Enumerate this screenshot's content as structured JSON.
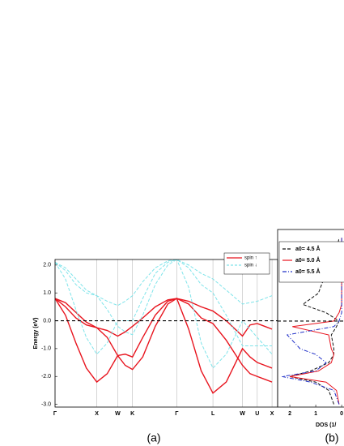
{
  "chart_data": [
    {
      "type": "line",
      "panel_label": "(a)",
      "y_label": "Energy (eV)",
      "xlim": [
        0,
        5.33
      ],
      "ylim": [
        -3.1,
        2.2
      ],
      "xticks": [
        {
          "value": 0,
          "label": "Γ"
        },
        {
          "value": 1,
          "label": "X"
        },
        {
          "value": 1.5,
          "label": "W"
        },
        {
          "value": 1.854,
          "label": "K"
        },
        {
          "value": 2.915,
          "label": "Γ"
        },
        {
          "value": 3.781,
          "label": "L"
        },
        {
          "value": 4.488,
          "label": "W"
        },
        {
          "value": 4.842,
          "label": "U"
        },
        {
          "value": 5.196,
          "label": "X"
        }
      ],
      "yticks": [
        {
          "value": 2,
          "label": "2.0"
        },
        {
          "value": 1,
          "label": "1.0"
        },
        {
          "value": 0,
          "label": "0.0"
        },
        {
          "value": -1,
          "label": "-1.0"
        },
        {
          "value": -2,
          "label": "-2.0"
        },
        {
          "value": -3,
          "label": "-3.0"
        }
      ],
      "grid": true,
      "fermi_level": 0,
      "legend": "upper right",
      "x": [
        0,
        0.25,
        0.5,
        0.75,
        1,
        1.25,
        1.5,
        1.68,
        1.854,
        2.1,
        2.4,
        2.7,
        2.915,
        3.2,
        3.5,
        3.781,
        4.1,
        4.488,
        4.67,
        4.842,
        5.02,
        5.196
      ],
      "series": [
        {
          "name": "spin ↑",
          "color": "#e8141e",
          "dash": false,
          "values": [
            0.8,
            0.65,
            0.3,
            -0.05,
            -0.25,
            -0.35,
            -0.55,
            -0.4,
            -0.2,
            0.1,
            0.5,
            0.75,
            0.8,
            0.7,
            0.5,
            0.35,
            0.0,
            -0.55,
            -0.15,
            -0.1,
            -0.2,
            -0.3
          ]
        },
        {
          "color": "#e8141e",
          "dash": false,
          "values": [
            0.8,
            0.2,
            -0.8,
            -1.7,
            -2.2,
            -1.9,
            -1.25,
            -1.2,
            -1.3,
            -0.6,
            0.2,
            0.7,
            0.8,
            -0.3,
            -1.8,
            -2.6,
            -2.2,
            -1.0,
            -1.3,
            -1.5,
            -1.6,
            -1.7
          ]
        },
        {
          "color": "#e8141e",
          "dash": false,
          "values": [
            0.8,
            0.5,
            0.1,
            -0.15,
            -0.25,
            -0.6,
            -1.25,
            -1.6,
            -1.75,
            -1.3,
            -0.2,
            0.6,
            0.8,
            0.6,
            0.1,
            -0.1,
            -0.7,
            -1.6,
            -1.9,
            -2.0,
            -2.1,
            -2.2
          ]
        },
        {
          "name": "spin ↓",
          "color": "#7fe4ea",
          "dash": true,
          "values": [
            2.1,
            1.9,
            1.5,
            1.1,
            0.9,
            0.7,
            0.55,
            0.7,
            0.9,
            1.4,
            1.9,
            2.15,
            2.2,
            2.0,
            1.7,
            1.5,
            1.1,
            0.6,
            0.65,
            0.7,
            0.8,
            0.9
          ]
        },
        {
          "color": "#7fe4ea",
          "dash": true,
          "values": [
            2.1,
            1.5,
            0.4,
            -0.6,
            -1.2,
            -0.8,
            0.0,
            0.0,
            0.0,
            0.8,
            1.7,
            2.1,
            2.2,
            1.2,
            -0.8,
            -1.7,
            -1.2,
            0.0,
            -0.3,
            -0.6,
            -0.9,
            -1.2
          ]
        },
        {
          "color": "#7fe4ea",
          "dash": true,
          "values": [
            2.1,
            1.8,
            1.3,
            1.0,
            0.9,
            0.4,
            -0.2,
            -0.4,
            -0.5,
            0.2,
            1.3,
            2.0,
            2.2,
            1.9,
            1.3,
            1.0,
            0.2,
            -0.9,
            -0.9,
            -0.9,
            -0.9,
            -0.9
          ]
        }
      ]
    },
    {
      "type": "dos",
      "panel_label": "(b)",
      "x_label": "DOS (1/",
      "xlim": [
        2.47,
        -0.09
      ],
      "ylim": [
        -3.1,
        3.3
      ],
      "xticks": [
        2,
        1,
        0
      ],
      "fermi_level": 0,
      "legend": "upper left",
      "energies": [
        -3.0,
        -2.5,
        -2.2,
        -2.0,
        -1.8,
        -1.5,
        -1.2,
        -1.0,
        -0.5,
        -0.2,
        0,
        0.3,
        0.6,
        1.0,
        1.5,
        2.0,
        2.5,
        3.0
      ],
      "series": [
        {
          "name": "a0= 4.5 Å",
          "color": "#111111",
          "dash": "4,2",
          "values": [
            0.3,
            0.5,
            1.0,
            2.0,
            1.2,
            0.5,
            0.3,
            0.3,
            0.4,
            0.2,
            0.1,
            0.6,
            1.5,
            0.9,
            0.7,
            0.4,
            0.2,
            0.1
          ]
        },
        {
          "name": "a0= 5.0 Å",
          "color": "#e8141e",
          "dash": "",
          "values": [
            0.1,
            0.2,
            0.6,
            2.0,
            0.9,
            0.4,
            0.3,
            0.4,
            0.5,
            1.9,
            0.3,
            0.1,
            0.0,
            0.0,
            0.0,
            0.0,
            0.0,
            0.0
          ]
        },
        {
          "name": "a0= 5.5 Å",
          "color": "#2030c8",
          "dash": "5,2,1,2",
          "values": [
            0.1,
            0.3,
            1.2,
            2.3,
            1.0,
            0.6,
            1.0,
            1.6,
            2.1,
            0.3,
            0.1,
            0.0,
            0.0,
            0.0,
            0.0,
            0.0,
            0.0,
            0.0
          ]
        }
      ]
    }
  ]
}
